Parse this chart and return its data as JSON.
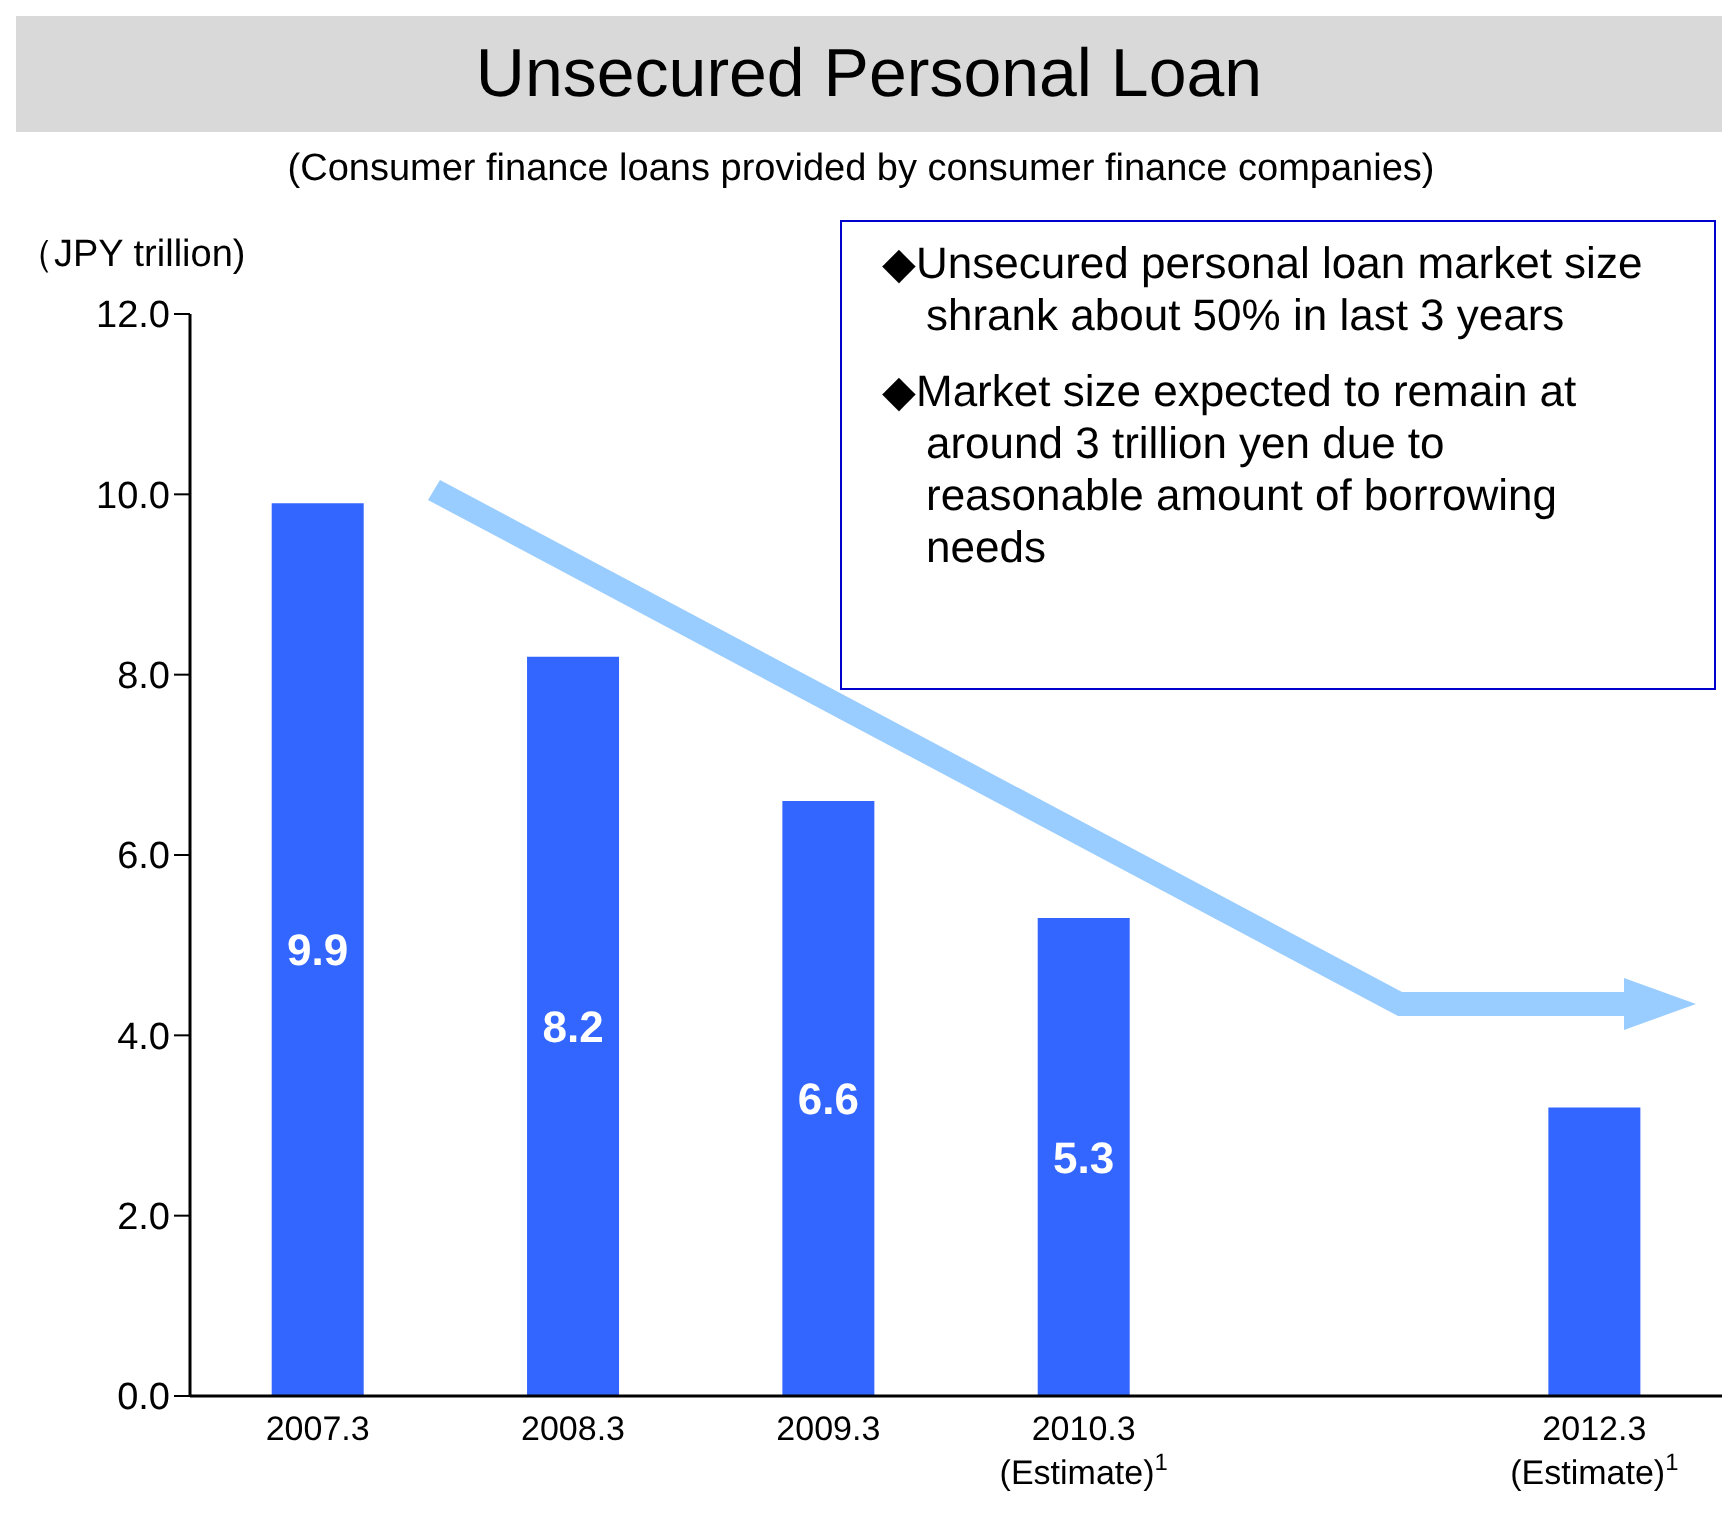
{
  "chart_data": {
    "type": "bar",
    "title": "Unsecured Personal Loan",
    "subtitle": "(Consumer finance loans provided by consumer finance companies)",
    "ylabel": "（JPY trillion)",
    "categories": [
      "2007.3",
      "2008.3",
      "2009.3",
      "2010.3\n(Estimate)$^{1}$",
      null,
      "2012.3\n(Estimate)$^{1}$"
    ],
    "values": [
      9.9,
      8.2,
      6.6,
      5.3,
      null,
      3.2
    ],
    "value_labels": [
      "9.9",
      "8.2",
      "6.6",
      "5.3",
      null,
      null
    ],
    "color": "#3366ff",
    "ylim": [
      0,
      12
    ],
    "yticks": [
      {
        "value": 0,
        "label": "0.0"
      },
      {
        "value": 2,
        "label": "2.0"
      },
      {
        "value": 4,
        "label": "4.0"
      },
      {
        "value": 6,
        "label": "6.0"
      },
      {
        "value": 8,
        "label": "8.0"
      },
      {
        "value": 10,
        "label": "10.0"
      },
      {
        "value": 12,
        "label": "12.0"
      }
    ],
    "grid": false,
    "annotations": [
      "◆Unsecured personal loan market size shrank about 50% in last 3 years",
      "◆Market size expected to remain at around 3 trillion yen due to reasonable amount of borrowing needs"
    ]
  }
}
